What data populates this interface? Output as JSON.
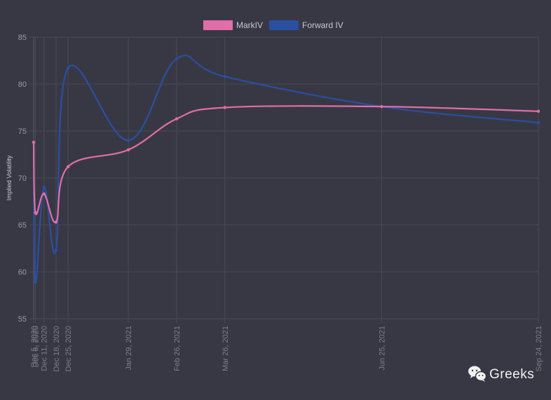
{
  "chart_data": {
    "type": "line",
    "title": "",
    "xlabel": "",
    "ylabel": "Implied Volatility",
    "ylim": [
      55,
      85
    ],
    "yticks": [
      55,
      60,
      65,
      70,
      75,
      80,
      85
    ],
    "categories": [
      "Dec 5, 2020",
      "Dec 6, 2020",
      "Dec 11, 2020",
      "Dec 18, 2020",
      "Dec 25, 2020",
      "Jan 29, 2021",
      "Feb 26, 2021",
      "Mar 26, 2021",
      "Jun 25, 2021",
      "Sep 24, 2021"
    ],
    "dates": [
      "2020-12-05",
      "2020-12-06",
      "2020-12-11",
      "2020-12-18",
      "2020-12-25",
      "2021-01-29",
      "2021-02-26",
      "2021-03-26",
      "2021-06-25",
      "2021-09-24"
    ],
    "grid": true,
    "legend_position": "top-center",
    "series": [
      {
        "name": "MarkIV",
        "color": "#e06ea8",
        "values": [
          73.8,
          66.3,
          68.3,
          65.3,
          71.2,
          73.0,
          76.3,
          77.5,
          77.6,
          77.1
        ]
      },
      {
        "name": "Forward IV",
        "color": "#2a4fa1",
        "values": [
          73.8,
          58.9,
          69.0,
          62.3,
          81.7,
          74.0,
          82.7,
          80.8,
          77.6,
          75.9
        ]
      }
    ]
  },
  "watermark": {
    "icon": "wechat-icon",
    "text": "Greeks"
  }
}
